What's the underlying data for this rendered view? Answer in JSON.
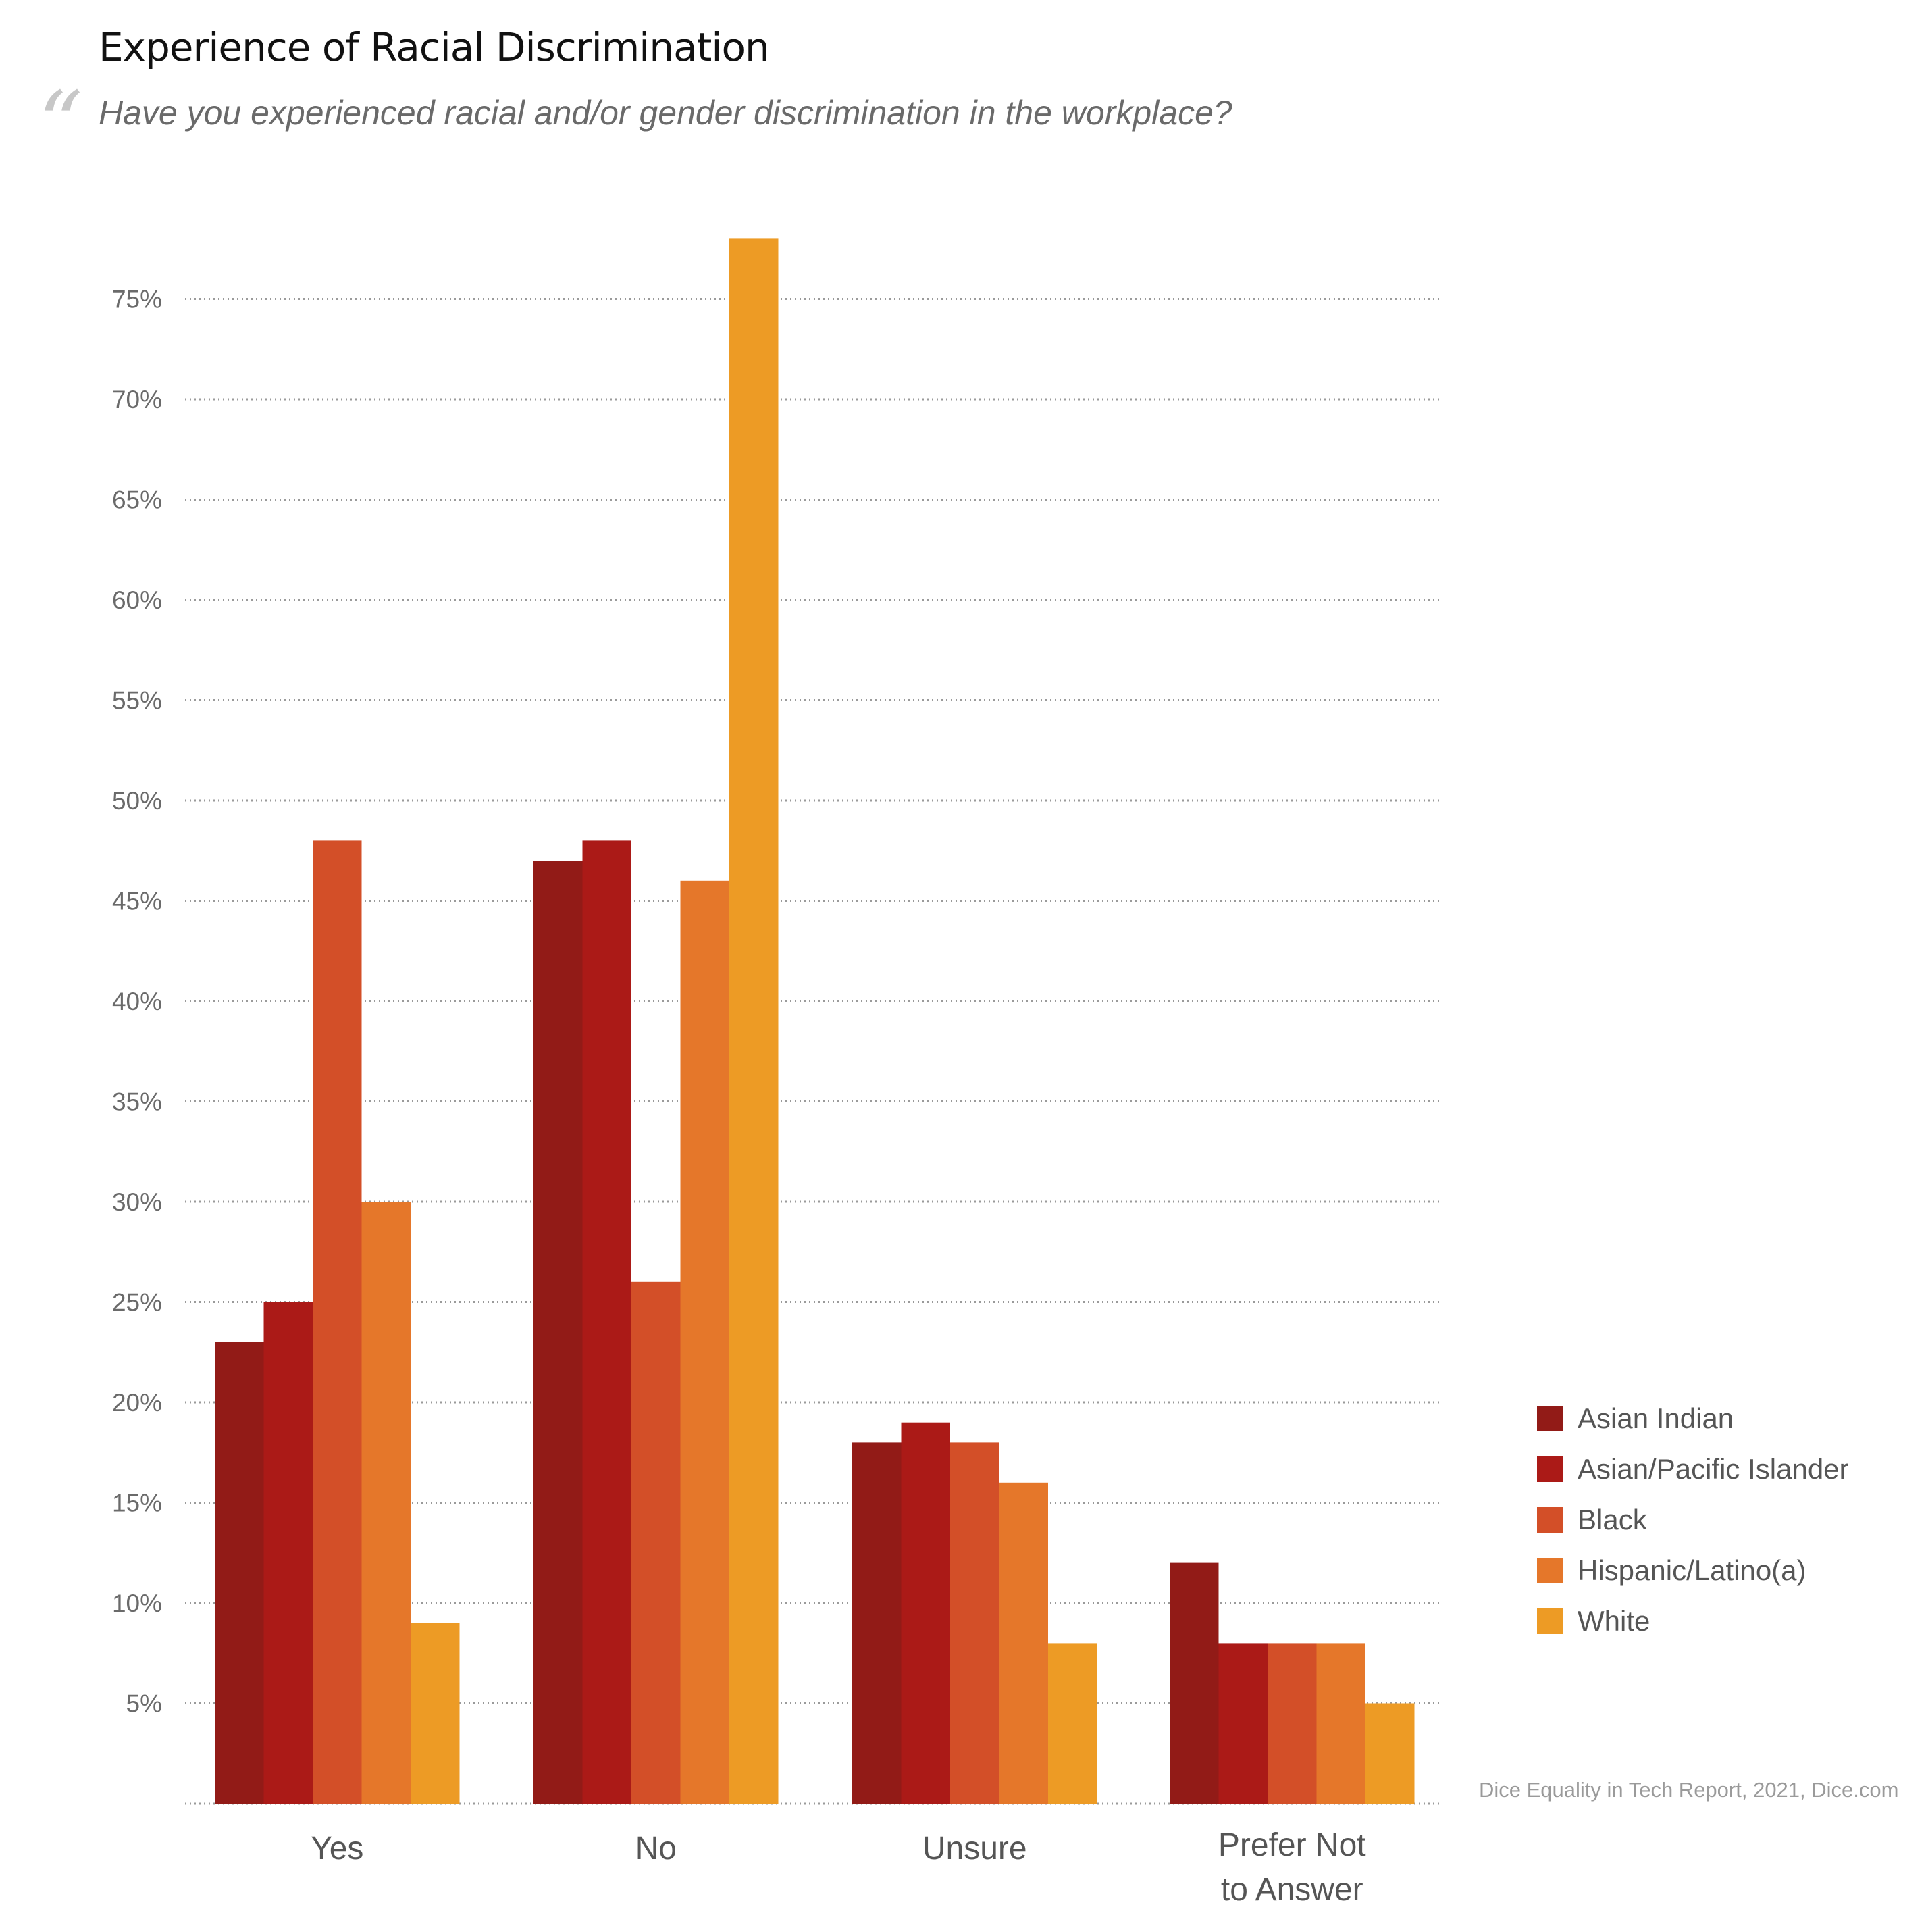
{
  "title": "Experience of Racial Discrimination",
  "quote_mark": "“",
  "subtitle": "Have you experienced racial and/or gender discrimination in the workplace?",
  "source": "Dice Equality in Tech Report, 2021, Dice.com",
  "chart_data": {
    "type": "bar",
    "title": "Experience of Racial Discrimination",
    "subtitle": "Have you experienced racial and/or gender discrimination in the workplace?",
    "categories": [
      "Yes",
      "No",
      "Unsure",
      "Prefer Not\nto Answer"
    ],
    "series": [
      {
        "name": "Asian Indian",
        "color": "#921b17",
        "values": [
          23,
          47,
          18,
          12
        ]
      },
      {
        "name": "Asian/Pacific Islander",
        "color": "#ab1a17",
        "values": [
          25,
          48,
          19,
          8
        ]
      },
      {
        "name": "Black",
        "color": "#d34f28",
        "values": [
          48,
          26,
          18,
          8
        ]
      },
      {
        "name": "Hispanic/Latino(a)",
        "color": "#e5772a",
        "values": [
          30,
          46,
          16,
          8
        ]
      },
      {
        "name": "White",
        "color": "#ed9b25",
        "values": [
          9,
          78,
          8,
          5
        ]
      }
    ],
    "ylim": [
      0,
      80
    ],
    "yticks": [
      5,
      10,
      15,
      20,
      25,
      30,
      35,
      40,
      45,
      50,
      55,
      60,
      65,
      70,
      75
    ],
    "tick_suffix": "%",
    "grid": true,
    "legend": "bottom-right"
  }
}
